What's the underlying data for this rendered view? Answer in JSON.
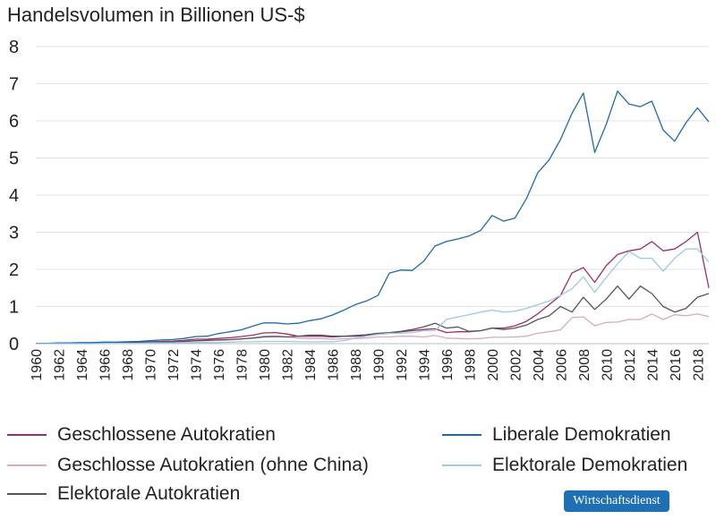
{
  "chart_data": {
    "type": "line",
    "title": "Handelsvolumen in Billionen US-$",
    "xlabel": "",
    "ylabel": "",
    "ylim": [
      0,
      8
    ],
    "yticks": [
      "0",
      "1",
      "2",
      "3",
      "4",
      "5",
      "6",
      "7",
      "8"
    ],
    "xticks": [
      "1960",
      "1962",
      "1964",
      "1966",
      "1968",
      "1970",
      "1972",
      "1974",
      "1976",
      "1978",
      "1980",
      "1982",
      "1984",
      "1986",
      "1988",
      "1990",
      "1992",
      "1994",
      "1996",
      "1998",
      "2000",
      "2002",
      "2004",
      "2006",
      "2008",
      "2010",
      "2012",
      "2014",
      "2016",
      "2018"
    ],
    "grid": true,
    "legend_position": "bottom",
    "x": [
      1960,
      1961,
      1962,
      1963,
      1964,
      1965,
      1966,
      1967,
      1968,
      1969,
      1970,
      1971,
      1972,
      1973,
      1974,
      1975,
      1976,
      1977,
      1978,
      1979,
      1980,
      1981,
      1982,
      1983,
      1984,
      1985,
      1986,
      1987,
      1988,
      1989,
      1990,
      1991,
      1992,
      1993,
      1994,
      1995,
      1996,
      1997,
      1998,
      1999,
      2000,
      2001,
      2002,
      2003,
      2004,
      2005,
      2006,
      2007,
      2008,
      2009,
      2010,
      2011,
      2012,
      2013,
      2014,
      2015,
      2016,
      2017,
      2018,
      2019
    ],
    "series": [
      {
        "name": "Geschlossene Autokratien",
        "color": "#9b2f6b",
        "values": [
          0.01,
          0.01,
          0.01,
          0.01,
          0.02,
          0.02,
          0.02,
          0.02,
          0.03,
          0.04,
          0.05,
          0.06,
          0.07,
          0.09,
          0.12,
          0.12,
          0.14,
          0.16,
          0.19,
          0.23,
          0.29,
          0.3,
          0.26,
          0.2,
          0.2,
          0.2,
          0.18,
          0.2,
          0.2,
          0.22,
          0.25,
          0.28,
          0.32,
          0.35,
          0.38,
          0.4,
          0.3,
          0.32,
          0.32,
          0.35,
          0.42,
          0.42,
          0.48,
          0.6,
          0.8,
          1.05,
          1.3,
          1.9,
          2.05,
          1.65,
          2.1,
          2.4,
          2.5,
          2.55,
          2.75,
          2.5,
          2.55,
          2.75,
          3.0,
          1.5
        ]
      },
      {
        "name": "Geschlosse Autokratien (ohne China)",
        "color": "#d8a8c4",
        "values": [
          0.01,
          0.01,
          0.01,
          0.01,
          0.01,
          0.01,
          0.01,
          0.01,
          0.02,
          0.02,
          0.03,
          0.03,
          0.04,
          0.05,
          0.07,
          0.08,
          0.09,
          0.1,
          0.12,
          0.15,
          0.2,
          0.21,
          0.18,
          0.15,
          0.14,
          0.14,
          0.12,
          0.13,
          0.14,
          0.15,
          0.18,
          0.18,
          0.2,
          0.2,
          0.18,
          0.22,
          0.15,
          0.14,
          0.13,
          0.14,
          0.17,
          0.17,
          0.18,
          0.2,
          0.28,
          0.32,
          0.37,
          0.7,
          0.72,
          0.48,
          0.57,
          0.58,
          0.65,
          0.65,
          0.8,
          0.65,
          0.78,
          0.75,
          0.8,
          0.73
        ]
      },
      {
        "name": "Elektorale Autokratien",
        "color": "#555555",
        "values": [
          0.01,
          0.01,
          0.01,
          0.01,
          0.01,
          0.01,
          0.02,
          0.02,
          0.02,
          0.03,
          0.04,
          0.04,
          0.05,
          0.06,
          0.08,
          0.09,
          0.1,
          0.11,
          0.13,
          0.15,
          0.18,
          0.19,
          0.18,
          0.2,
          0.23,
          0.23,
          0.2,
          0.2,
          0.22,
          0.24,
          0.28,
          0.3,
          0.33,
          0.38,
          0.45,
          0.55,
          0.42,
          0.45,
          0.33,
          0.35,
          0.42,
          0.38,
          0.42,
          0.5,
          0.65,
          0.75,
          1.0,
          0.85,
          1.25,
          0.92,
          1.2,
          1.55,
          1.2,
          1.55,
          1.35,
          1.0,
          0.85,
          0.95,
          1.25,
          1.35
        ]
      },
      {
        "name": "Liberale Demokratien",
        "color": "#1d6aae",
        "values": [
          0.01,
          0.01,
          0.02,
          0.02,
          0.03,
          0.03,
          0.04,
          0.04,
          0.05,
          0.06,
          0.08,
          0.1,
          0.11,
          0.14,
          0.19,
          0.2,
          0.27,
          0.32,
          0.37,
          0.47,
          0.56,
          0.56,
          0.53,
          0.55,
          0.62,
          0.67,
          0.77,
          0.9,
          1.05,
          1.15,
          1.3,
          1.9,
          1.98,
          1.97,
          2.22,
          2.63,
          2.75,
          2.82,
          2.9,
          3.05,
          3.45,
          3.3,
          3.38,
          3.9,
          4.6,
          4.95,
          5.5,
          6.2,
          6.75,
          5.15,
          5.9,
          6.8,
          6.45,
          6.38,
          6.53,
          5.75,
          5.45,
          5.95,
          6.35,
          5.97
        ]
      },
      {
        "name": "Elektorale Demokratien",
        "color": "#9ec8e4",
        "values": [
          0.0,
          0.0,
          0.0,
          0.0,
          0.0,
          0.0,
          0.01,
          0.01,
          0.01,
          0.01,
          0.02,
          0.02,
          0.02,
          0.03,
          0.03,
          0.03,
          0.03,
          0.04,
          0.05,
          0.05,
          0.06,
          0.06,
          0.06,
          0.05,
          0.05,
          0.05,
          0.05,
          0.08,
          0.15,
          0.2,
          0.25,
          0.28,
          0.28,
          0.3,
          0.35,
          0.35,
          0.65,
          0.72,
          0.78,
          0.85,
          0.9,
          0.85,
          0.87,
          0.95,
          1.05,
          1.15,
          1.3,
          1.48,
          1.8,
          1.38,
          1.78,
          2.15,
          2.48,
          2.3,
          2.3,
          1.95,
          2.3,
          2.55,
          2.55,
          2.2
        ]
      }
    ]
  },
  "legend": {
    "items": [
      {
        "label": "Geschlossene Autokratien",
        "color": "#9b2f6b"
      },
      {
        "label": "Geschlosse Autokratien (ohne China)",
        "color": "#d8a8c4"
      },
      {
        "label": "Elektorale Autokratien",
        "color": "#555555"
      },
      {
        "label": "Liberale Demokratien",
        "color": "#1d6aae"
      },
      {
        "label": "Elektorale Demokratien",
        "color": "#9ec8e4"
      }
    ]
  },
  "badge": {
    "text": "Wirtschaftsdienst"
  }
}
